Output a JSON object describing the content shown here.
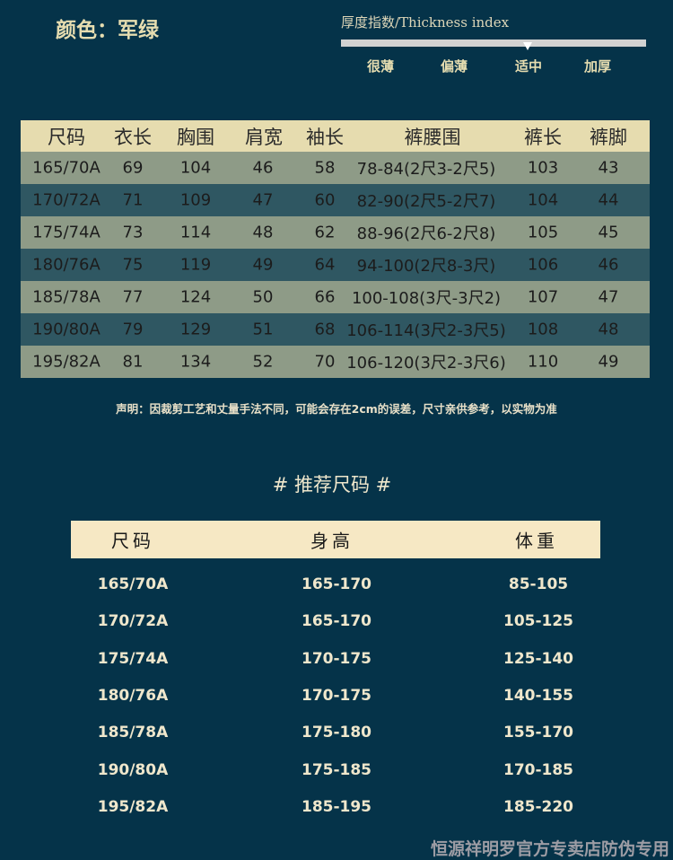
{
  "product": {
    "color_label": "颜色：军绿"
  },
  "thickness": {
    "label": "厚度指数/Thickness index",
    "levels": [
      "很薄",
      "偏薄",
      "适中",
      "加厚"
    ],
    "selected": "适中",
    "bar_color": "#d2d2d2"
  },
  "size_table": {
    "headers": [
      "尺码",
      "衣长",
      "胸围",
      "肩宽",
      "袖长",
      "裤腰围",
      "裤长",
      "裤脚"
    ],
    "rows": [
      [
        "165/70A",
        "69",
        "104",
        "46",
        "58",
        "78-84(2尺3-2尺5)",
        "103",
        "43"
      ],
      [
        "170/72A",
        "71",
        "109",
        "47",
        "60",
        "82-90(2尺5-2尺7)",
        "104",
        "44"
      ],
      [
        "175/74A",
        "73",
        "114",
        "48",
        "62",
        "88-96(2尺6-2尺8)",
        "105",
        "45"
      ],
      [
        "180/76A",
        "75",
        "119",
        "49",
        "64",
        "94-100(2尺8-3尺)",
        "106",
        "46"
      ],
      [
        "185/78A",
        "77",
        "124",
        "50",
        "66",
        "100-108(3尺-3尺2)",
        "107",
        "47"
      ],
      [
        "190/80A",
        "79",
        "129",
        "51",
        "68",
        "106-114(3尺2-3尺5)",
        "108",
        "48"
      ],
      [
        "195/82A",
        "81",
        "134",
        "52",
        "70",
        "106-120(3尺2-3尺6)",
        "110",
        "49"
      ]
    ]
  },
  "note": "声明：因裁剪工艺和丈量手法不同，可能会存在2cm的误差，尺寸亲供参考，以实物为准",
  "recommend": {
    "title": "# 推荐尺码 #",
    "headers": [
      "尺码",
      "身高",
      "体重"
    ],
    "rows": [
      [
        "165/70A",
        "165-170",
        "85-105"
      ],
      [
        "170/72A",
        "165-170",
        "105-125"
      ],
      [
        "175/74A",
        "170-175",
        "125-140"
      ],
      [
        "180/76A",
        "170-175",
        "140-155"
      ],
      [
        "185/78A",
        "175-180",
        "155-170"
      ],
      [
        "190/80A",
        "175-185",
        "170-185"
      ],
      [
        "195/82A",
        "185-195",
        "185-220"
      ]
    ]
  },
  "watermark": "恒源祥明罗官方专卖店防伪专用",
  "colors": {
    "background": "#053349",
    "header": "#e6dcaf",
    "row_light": "#8e9b87",
    "row_dark": "#2f5762"
  }
}
